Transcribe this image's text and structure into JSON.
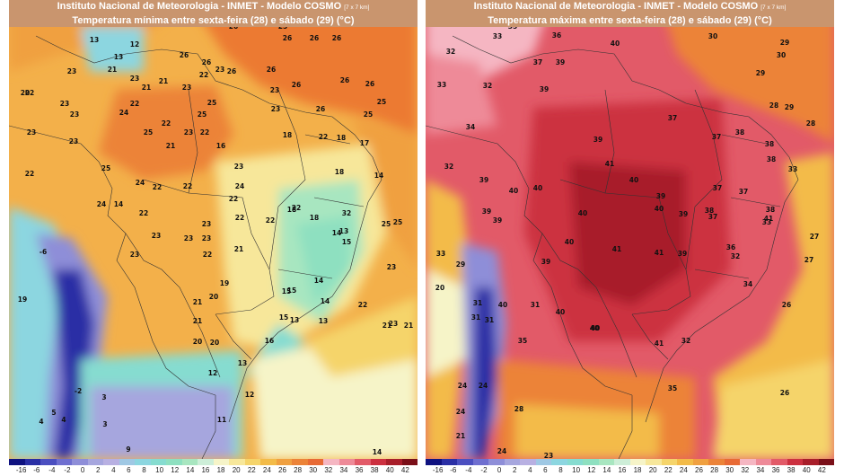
{
  "left_panel": {
    "title_line1": "Instituto Nacional de Meteorologia - INMET - Modelo COSMO",
    "title_resolution": "[7 x 7 km]",
    "title_line2": "Temperatura mínima entre sexta-feira (28) e sábado (29) (°C)",
    "labels": [
      {
        "v": "26"
      },
      {
        "v": "25"
      },
      {
        "v": "25"
      },
      {
        "v": "26"
      },
      {
        "v": "26"
      },
      {
        "v": "26"
      },
      {
        "v": "13"
      },
      {
        "v": "12"
      },
      {
        "v": "13"
      },
      {
        "v": "26"
      },
      {
        "v": "26"
      },
      {
        "v": "26"
      },
      {
        "v": "26"
      },
      {
        "v": "23"
      },
      {
        "v": "21"
      },
      {
        "v": "23"
      },
      {
        "v": "21"
      },
      {
        "v": "22"
      },
      {
        "v": "23"
      },
      {
        "v": "26"
      },
      {
        "v": "22"
      },
      {
        "v": "26"
      },
      {
        "v": "21"
      },
      {
        "v": "23"
      },
      {
        "v": "23"
      },
      {
        "v": "26"
      },
      {
        "v": "25"
      },
      {
        "v": "20"
      },
      {
        "v": "23"
      },
      {
        "v": "23"
      },
      {
        "v": "24"
      },
      {
        "v": "25"
      },
      {
        "v": "22"
      },
      {
        "v": "23"
      },
      {
        "v": "26"
      },
      {
        "v": "25"
      },
      {
        "v": "25"
      },
      {
        "v": "22"
      },
      {
        "v": "22"
      },
      {
        "v": "18"
      },
      {
        "v": "18"
      },
      {
        "v": "23"
      },
      {
        "v": "23"
      },
      {
        "v": "25"
      },
      {
        "v": "23"
      },
      {
        "v": "21"
      },
      {
        "v": "17"
      },
      {
        "v": "16"
      },
      {
        "v": "22"
      },
      {
        "v": "25"
      },
      {
        "v": "24"
      },
      {
        "v": "22"
      },
      {
        "v": "18"
      },
      {
        "v": "14"
      },
      {
        "v": "23"
      },
      {
        "v": "22"
      },
      {
        "v": "22"
      },
      {
        "v": "22"
      },
      {
        "v": "24"
      },
      {
        "v": "24"
      },
      {
        "v": "14"
      },
      {
        "v": "32"
      },
      {
        "v": "22"
      },
      {
        "v": "22"
      },
      {
        "v": "18"
      },
      {
        "v": "18"
      },
      {
        "v": "14"
      },
      {
        "v": "25"
      },
      {
        "v": "25"
      },
      {
        "v": "22"
      },
      {
        "v": "22"
      },
      {
        "v": "23"
      },
      {
        "v": "23"
      },
      {
        "v": "15"
      },
      {
        "v": "13"
      },
      {
        "v": "23"
      },
      {
        "v": "23"
      },
      {
        "v": "22"
      },
      {
        "v": "21"
      },
      {
        "v": "23"
      },
      {
        "v": "19"
      },
      {
        "v": "15"
      },
      {
        "v": "14"
      },
      {
        "v": "20"
      },
      {
        "v": "14"
      },
      {
        "v": "21"
      },
      {
        "v": "22"
      },
      {
        "v": "15"
      },
      {
        "v": "13"
      },
      {
        "v": "13"
      },
      {
        "v": "21"
      },
      {
        "v": "20"
      },
      {
        "v": "16"
      },
      {
        "v": "20"
      },
      {
        "v": "13"
      },
      {
        "v": "12"
      },
      {
        "v": "12"
      },
      {
        "v": "11"
      },
      {
        "v": "9"
      },
      {
        "v": "3"
      },
      {
        "v": "4"
      },
      {
        "v": "4"
      },
      {
        "v": "3"
      },
      {
        "v": "-6"
      },
      {
        "v": "-2"
      },
      {
        "v": "5"
      },
      {
        "v": "19"
      },
      {
        "v": "14"
      },
      {
        "v": "23"
      },
      {
        "v": "23"
      },
      {
        "v": "21"
      },
      {
        "v": "21"
      },
      {
        "v": "15"
      }
    ]
  },
  "right_panel": {
    "title_line1": "Instituto Nacional de Meteorologia - INMET - Modelo COSMO",
    "title_resolution": "[7 x 7 km]",
    "title_line2": "Temperatura máxima entre sexta-feira (28) e sábado (29) (°C)",
    "labels": [
      {
        "v": "32"
      },
      {
        "v": "33"
      },
      {
        "v": "35"
      },
      {
        "v": "36"
      },
      {
        "v": "30"
      },
      {
        "v": "30"
      },
      {
        "v": "29"
      },
      {
        "v": "29"
      },
      {
        "v": "40"
      },
      {
        "v": "37"
      },
      {
        "v": "39"
      },
      {
        "v": "33"
      },
      {
        "v": "32"
      },
      {
        "v": "39"
      },
      {
        "v": "29"
      },
      {
        "v": "28"
      },
      {
        "v": "28"
      },
      {
        "v": "34"
      },
      {
        "v": "37"
      },
      {
        "v": "38"
      },
      {
        "v": "38"
      },
      {
        "v": "37"
      },
      {
        "v": "39"
      },
      {
        "v": "33"
      },
      {
        "v": "41"
      },
      {
        "v": "38"
      },
      {
        "v": "37"
      },
      {
        "v": "32"
      },
      {
        "v": "39"
      },
      {
        "v": "40"
      },
      {
        "v": "40"
      },
      {
        "v": "40"
      },
      {
        "v": "39"
      },
      {
        "v": "37"
      },
      {
        "v": "39"
      },
      {
        "v": "40"
      },
      {
        "v": "40"
      },
      {
        "v": "38"
      },
      {
        "v": "38"
      },
      {
        "v": "37"
      },
      {
        "v": "39"
      },
      {
        "v": "41"
      },
      {
        "v": "39"
      },
      {
        "v": "33"
      },
      {
        "v": "27"
      },
      {
        "v": "33"
      },
      {
        "v": "41"
      },
      {
        "v": "39"
      },
      {
        "v": "40"
      },
      {
        "v": "41"
      },
      {
        "v": "36"
      },
      {
        "v": "32"
      },
      {
        "v": "27"
      },
      {
        "v": "20"
      },
      {
        "v": "29"
      },
      {
        "v": "39"
      },
      {
        "v": "31"
      },
      {
        "v": "40"
      },
      {
        "v": "40"
      },
      {
        "v": "34"
      },
      {
        "v": "26"
      },
      {
        "v": "31"
      },
      {
        "v": "40"
      },
      {
        "v": "31"
      },
      {
        "v": "31"
      },
      {
        "v": "35"
      },
      {
        "v": "40"
      },
      {
        "v": "41"
      },
      {
        "v": "32"
      },
      {
        "v": "24"
      },
      {
        "v": "35"
      },
      {
        "v": "26"
      },
      {
        "v": "24"
      },
      {
        "v": "28"
      },
      {
        "v": "24"
      },
      {
        "v": "21"
      },
      {
        "v": "24"
      },
      {
        "v": "23"
      }
    ]
  },
  "legend": {
    "labels": [
      "-16",
      "-6",
      "-4",
      "-2",
      "0",
      "2",
      "4",
      "6",
      "8",
      "10",
      "12",
      "14",
      "16",
      "18",
      "20",
      "22",
      "24",
      "26",
      "28",
      "30",
      "32",
      "34",
      "36",
      "38",
      "40",
      "42"
    ],
    "colors": [
      "#0f1280",
      "#2a2fa5",
      "#4b4fc0",
      "#6f6fd0",
      "#8e8ed8",
      "#a6a6de",
      "#b8b0e2",
      "#9fc8e4",
      "#8cd6e0",
      "#86dcd0",
      "#8ee0c0",
      "#a8e6c0",
      "#cdeed8",
      "#f6f4c8",
      "#f7e79a",
      "#f5d46a",
      "#f3bb48",
      "#f0a040",
      "#ec8338",
      "#e86a35",
      "#f5b6c2",
      "#ee8a98",
      "#e25a68",
      "#cc3040",
      "#a81e2a",
      "#7a0f18"
    ]
  }
}
